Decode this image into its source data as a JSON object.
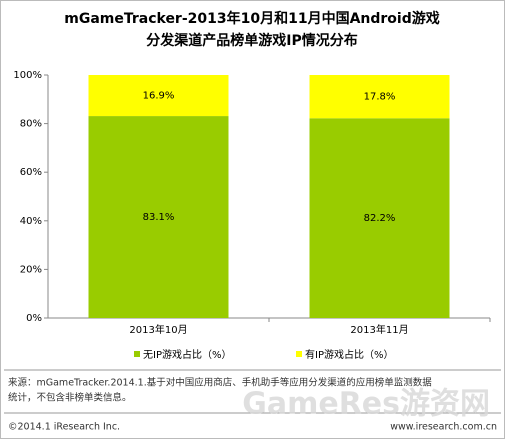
{
  "chart_data": {
    "type": "stacked_bar",
    "title": [
      "mGameTracker-2013年10月和11月中国Android游戏",
      "分发渠道产品榜单游戏IP情况分布"
    ],
    "categories": [
      "2013年10月",
      "2013年11月"
    ],
    "series": [
      {
        "name": "无IP游戏占比（%）",
        "color": "#99cc00",
        "values": [
          83.1,
          82.2
        ],
        "value_labels": [
          "83.1%",
          "82.2%"
        ]
      },
      {
        "name": "有IP游戏占比（%）",
        "color": "#ffff00",
        "values": [
          16.9,
          17.8
        ],
        "value_labels": [
          "16.9%",
          "17.8%"
        ]
      }
    ],
    "ylim": [
      0,
      100
    ],
    "yticks": [
      {
        "value": 0,
        "label": "0%"
      },
      {
        "value": 20,
        "label": "20%"
      },
      {
        "value": 40,
        "label": "40%"
      },
      {
        "value": 60,
        "label": "60%"
      },
      {
        "value": 80,
        "label": "80%"
      },
      {
        "value": 100,
        "label": "100%"
      }
    ],
    "legend": "bottom"
  },
  "footer": {
    "source": [
      "来源：mGameTracker.2014.1.基于对中国应用商店、手机助手等应用分发渠道的应用榜单监测数据",
      "统计，不包含非榜单类信息。"
    ],
    "copyright": "©2014.1 iResearch Inc.",
    "website": "www.iresearch.com.cn"
  },
  "watermark": "GameRes游资网"
}
